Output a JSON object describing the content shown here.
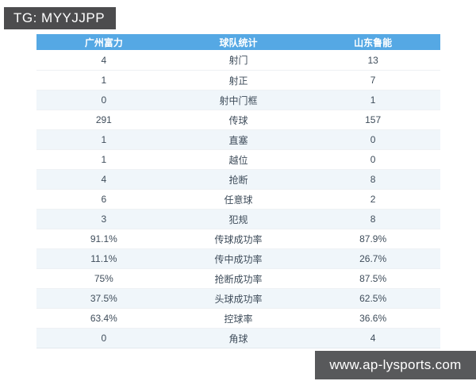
{
  "badges": {
    "top_label": "TG: MYYJJPP",
    "bottom_label": "www.ap-lysports.com"
  },
  "colors": {
    "header_blue": "#55a8e4",
    "stripe_row": "#f0f6fa",
    "badge_dark": "#4c4c4e",
    "cell_text": "#3e4c5a"
  },
  "table": {
    "headers": [
      "广州富力",
      "球队统计",
      "山东鲁能"
    ],
    "rows": [
      {
        "home": "4",
        "stat": "射门",
        "away": "13"
      },
      {
        "home": "1",
        "stat": "射正",
        "away": "7"
      },
      {
        "home": "0",
        "stat": "射中门框",
        "away": "1"
      },
      {
        "home": "291",
        "stat": "传球",
        "away": "157"
      },
      {
        "home": "1",
        "stat": "直塞",
        "away": "0"
      },
      {
        "home": "1",
        "stat": "越位",
        "away": "0"
      },
      {
        "home": "4",
        "stat": "抢断",
        "away": "8"
      },
      {
        "home": "6",
        "stat": "任意球",
        "away": "2"
      },
      {
        "home": "3",
        "stat": "犯规",
        "away": "8"
      },
      {
        "home": "91.1%",
        "stat": "传球成功率",
        "away": "87.9%"
      },
      {
        "home": "11.1%",
        "stat": "传中成功率",
        "away": "26.7%"
      },
      {
        "home": "75%",
        "stat": "抢断成功率",
        "away": "87.5%"
      },
      {
        "home": "37.5%",
        "stat": "头球成功率",
        "away": "62.5%"
      },
      {
        "home": "63.4%",
        "stat": "控球率",
        "away": "36.6%"
      },
      {
        "home": "0",
        "stat": "角球",
        "away": "4"
      }
    ]
  }
}
